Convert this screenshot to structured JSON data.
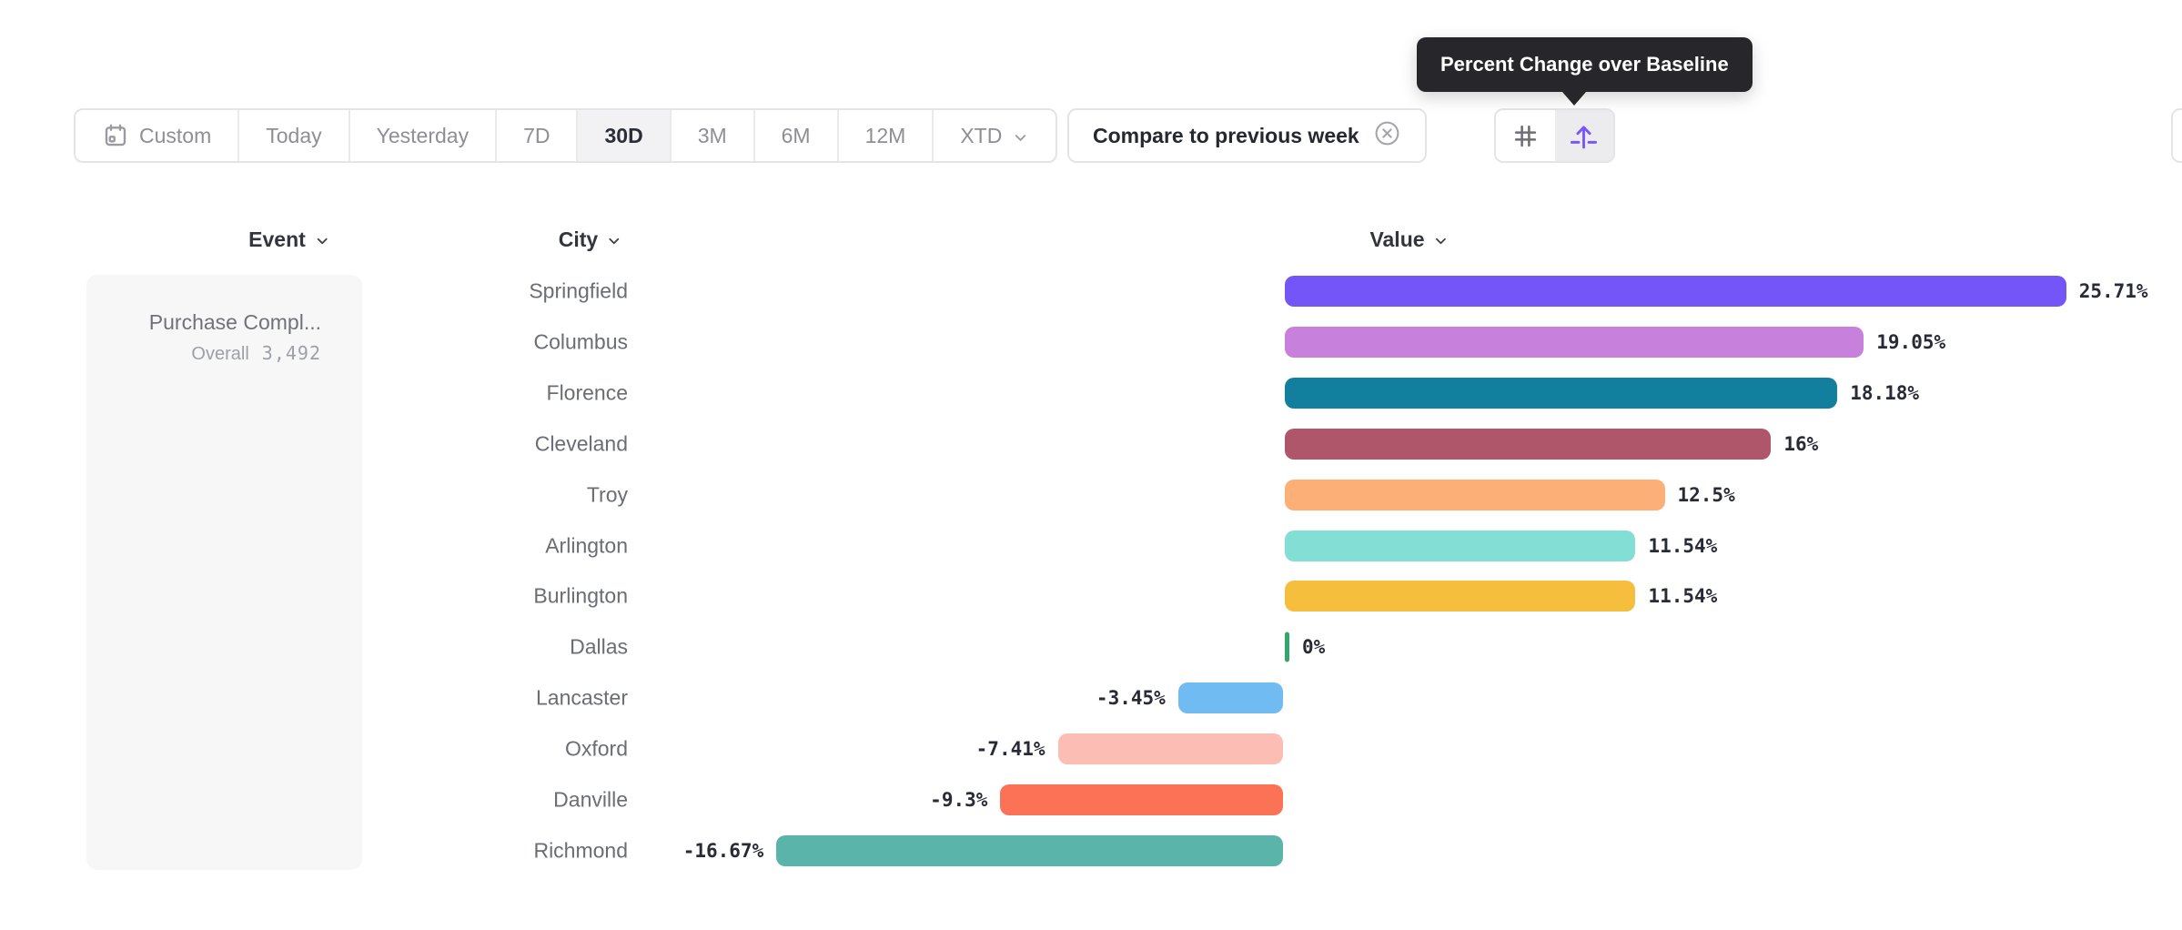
{
  "tooltip": {
    "text": "Percent Change over Baseline"
  },
  "toolbar": {
    "date_ranges": [
      {
        "label": "Custom",
        "icon": "calendar-icon",
        "selected": false
      },
      {
        "label": "Today",
        "selected": false
      },
      {
        "label": "Yesterday",
        "selected": false
      },
      {
        "label": "7D",
        "selected": false
      },
      {
        "label": "30D",
        "selected": true
      },
      {
        "label": "3M",
        "selected": false
      },
      {
        "label": "6M",
        "selected": false
      },
      {
        "label": "12M",
        "selected": false
      },
      {
        "label": "XTD",
        "icon": "chevron-down-icon",
        "selected": false
      }
    ],
    "compare_label": "Compare to previous week",
    "view_toggles": [
      {
        "icon": "grid-hash-icon",
        "active": false
      },
      {
        "icon": "uplift-arrow-icon",
        "active": true
      }
    ]
  },
  "columns": {
    "event": "Event",
    "city": "City",
    "value": "Value"
  },
  "event_panel": {
    "event_name": "Purchase Compl...",
    "overall_label": "Overall",
    "overall_value": "3,492"
  },
  "chart_data": {
    "type": "bar",
    "orientation": "horizontal",
    "title": "Percent Change over Baseline",
    "value_unit": "%",
    "baseline": 0,
    "categories": [
      "Springfield",
      "Columbus",
      "Florence",
      "Cleveland",
      "Troy",
      "Arlington",
      "Burlington",
      "Dallas",
      "Lancaster",
      "Oxford",
      "Danville",
      "Richmond"
    ],
    "values": [
      25.71,
      19.05,
      18.18,
      16,
      12.5,
      11.54,
      11.54,
      0,
      -3.45,
      -7.41,
      -9.3,
      -16.67
    ],
    "labels": [
      "25.71%",
      "19.05%",
      "18.18%",
      "16%",
      "12.5%",
      "11.54%",
      "11.54%",
      "0%",
      "-3.45%",
      "-7.41%",
      "-9.3%",
      "-16.67%"
    ],
    "colors": [
      "#7456F8",
      "#C780DC",
      "#127F9E",
      "#AF566B",
      "#FDAF78",
      "#83DED5",
      "#F6BE3D",
      "#34A56D",
      "#6FBBF2",
      "#FCBDB5",
      "#FB7257",
      "#5AB4AA"
    ],
    "accent_purple": "#7857FA",
    "xlim": [
      -18,
      27
    ]
  }
}
